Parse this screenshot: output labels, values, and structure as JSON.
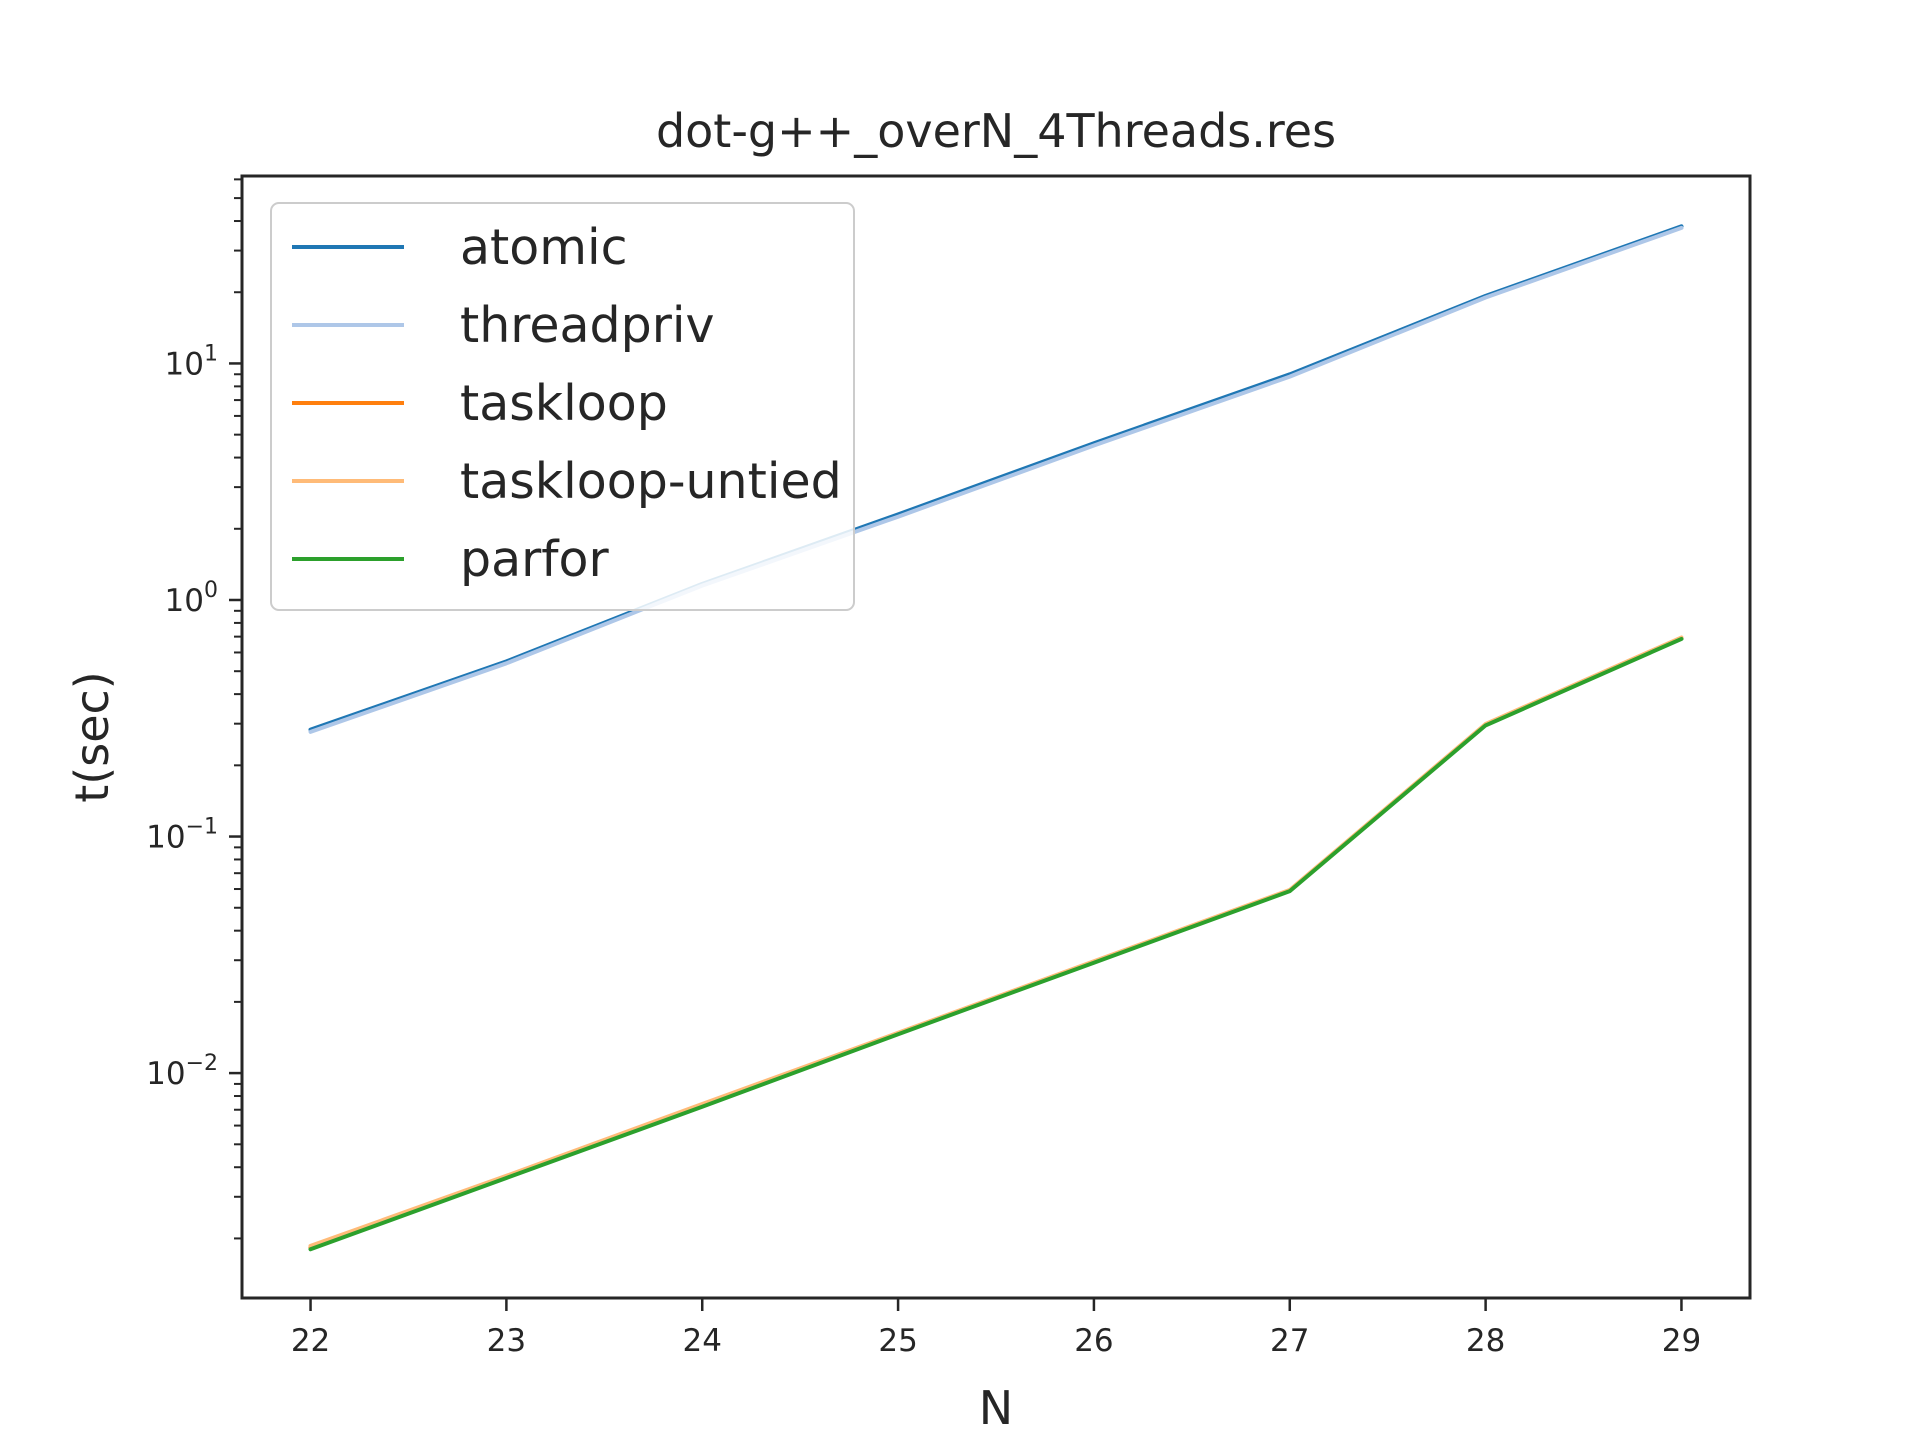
{
  "chart_data": {
    "type": "line",
    "title": "dot-g++_overN_4Threads.res",
    "xlabel": "N",
    "ylabel": "t(sec)",
    "yscale": "log",
    "xlim": [
      21.65,
      29.35
    ],
    "ylim": [
      0.00112,
      62
    ],
    "x": [
      22,
      23,
      24,
      25,
      26,
      27,
      28,
      29
    ],
    "x_ticks": [
      "22",
      "23",
      "24",
      "25",
      "26",
      "27",
      "28",
      "29"
    ],
    "y_ticks": [
      {
        "value": 0.01,
        "mantissa": "10",
        "exponent": "−2"
      },
      {
        "value": 0.1,
        "mantissa": "10",
        "exponent": "−1"
      },
      {
        "value": 1,
        "mantissa": "10",
        "exponent": "0"
      },
      {
        "value": 10,
        "mantissa": "10",
        "exponent": "1"
      }
    ],
    "grid": false,
    "legend_position": "top-left",
    "series": [
      {
        "name": "atomic",
        "color": "#1f77b4",
        "values": [
          0.283,
          0.55,
          1.17,
          2.3,
          4.6,
          9.0,
          19.3,
          38.0
        ]
      },
      {
        "name": "threadpriv",
        "color": "#aec7e8",
        "values": [
          0.277,
          0.54,
          1.15,
          2.25,
          4.5,
          8.8,
          19.0,
          37.4
        ]
      },
      {
        "name": "taskloop",
        "color": "#ff7f0e",
        "values": [
          0.00183,
          0.00365,
          0.0073,
          0.0147,
          0.0295,
          0.059,
          0.297,
          0.69
        ]
      },
      {
        "name": "taskloop-untied",
        "color": "#ffbb78",
        "values": [
          0.00186,
          0.00368,
          0.0074,
          0.0148,
          0.0297,
          0.0595,
          0.299,
          0.695
        ]
      },
      {
        "name": "parfor",
        "color": "#2ca02c",
        "values": [
          0.0018,
          0.0036,
          0.0072,
          0.0146,
          0.0293,
          0.0588,
          0.295,
          0.685
        ]
      }
    ]
  }
}
